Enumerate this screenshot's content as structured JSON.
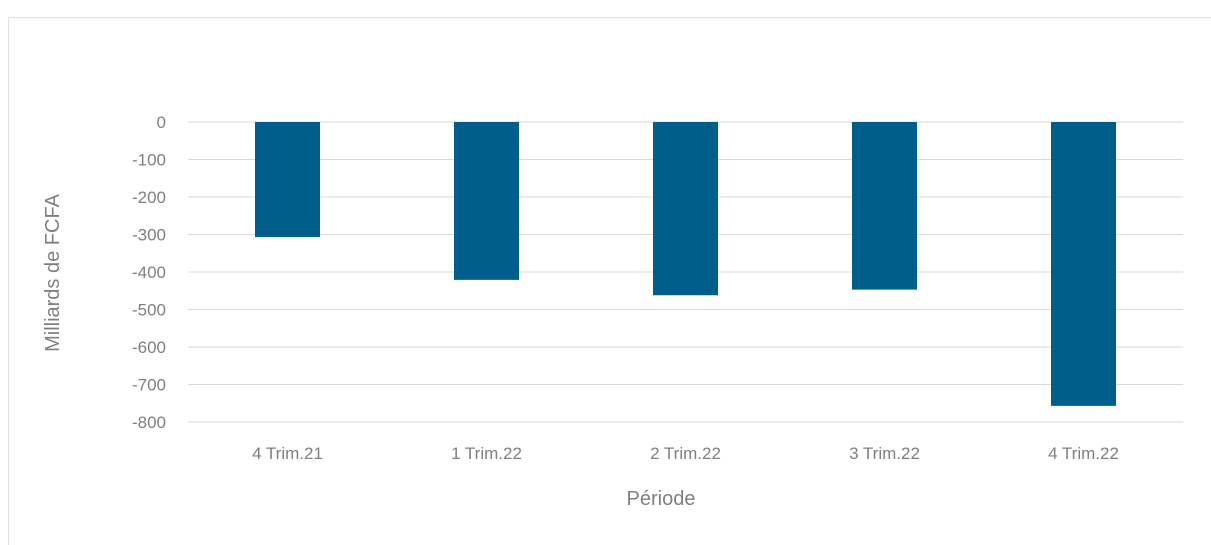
{
  "chart_data": {
    "type": "bar",
    "title": "",
    "xlabel": "Période",
    "ylabel": "Milliards de FCFA",
    "categories": [
      "4 Trim.21",
      "1 Trim.22",
      "2 Trim.22",
      "3 Trim.22",
      "4 Trim.22"
    ],
    "values": [
      -307,
      -421,
      -462,
      -447,
      -757
    ],
    "ylim": [
      -800,
      0
    ],
    "yticks": [
      0,
      -100,
      -200,
      -300,
      -400,
      -500,
      -600,
      -700,
      -800
    ],
    "ytick_labels": [
      "0",
      "-100",
      "-200",
      "-300",
      "-400",
      "-500",
      "-600",
      "-700",
      "-800"
    ],
    "grid": true,
    "legend": "none",
    "bar_color": "#005f8a",
    "grid_color": "#d9d9d9"
  }
}
